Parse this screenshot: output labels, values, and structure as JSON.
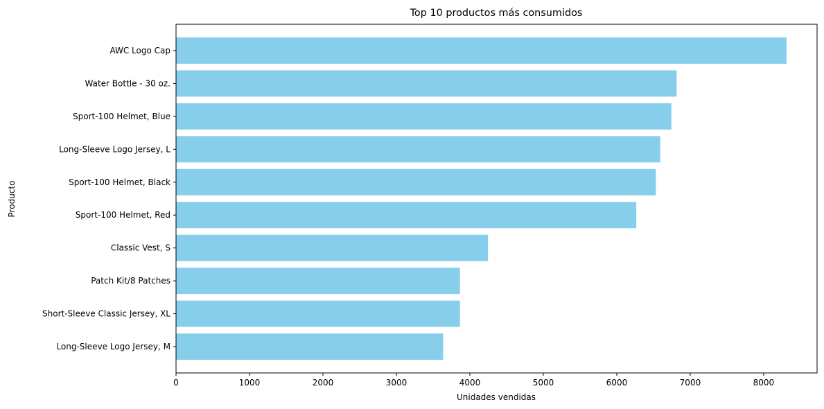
{
  "chart_data": {
    "type": "bar",
    "orientation": "horizontal",
    "title": "Top 10 productos más consumidos",
    "xlabel": "Unidades vendidas",
    "ylabel": "Producto",
    "categories": [
      "AWC Logo Cap",
      "Water Bottle - 30 oz.",
      "Sport-100 Helmet, Blue",
      "Long-Sleeve Logo Jersey, L",
      "Sport-100 Helmet, Black",
      "Sport-100 Helmet, Red",
      "Classic Vest, S",
      "Patch Kit/8 Patches",
      "Short-Sleeve Classic Jersey, XL",
      "Long-Sleeve Logo Jersey, M"
    ],
    "values": [
      8311,
      6815,
      6743,
      6592,
      6532,
      6266,
      4247,
      3865,
      3865,
      3636
    ],
    "xlim": [
      0,
      8727
    ],
    "xticks": [
      0,
      1000,
      2000,
      3000,
      4000,
      5000,
      6000,
      7000,
      8000
    ],
    "grid": false,
    "bar_color": "#87ceeb"
  }
}
